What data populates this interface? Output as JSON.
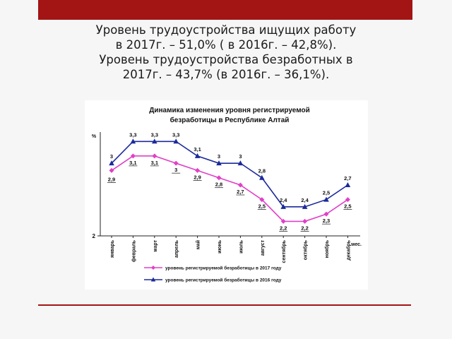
{
  "heading": {
    "line1": "Уровень трудоустройства ищущих работу",
    "line2": "в 2017г. – 51,0% ( в 2016г. – 42,8%).",
    "line3": "Уровень трудоустройства безработных в",
    "line4": "2017г. – 43,7% (в 2016г. – 36,1%)."
  },
  "colors": {
    "bar": "#a31515",
    "series_2017": "#e040c8",
    "series_2016": "#1b2a9a"
  },
  "chart_data": {
    "type": "line",
    "title_line1": "Динамика изменения уровня регистрируемой",
    "title_line2": "безработицы в Республике Алтай",
    "ylabel": "%",
    "ylim": [
      2,
      3.4
    ],
    "y_ticks": [
      {
        "value": 2,
        "label": "2"
      }
    ],
    "categories": [
      "январь",
      "февраль",
      "март",
      "апрель",
      "май",
      "июнь",
      "июль",
      "август",
      "сентябрь",
      "октябрь",
      "ноябрь",
      "декабрь"
    ],
    "category_suffix": "мес.",
    "legend_position": "bottom",
    "series": [
      {
        "name": "уровень регистрируемой безработицы в 2017 году",
        "marker": "diamond",
        "color": "#e040c8",
        "values": [
          2.9,
          3.1,
          3.1,
          3.0,
          2.9,
          2.8,
          2.7,
          2.5,
          2.2,
          2.2,
          2.3,
          2.5
        ],
        "labels": [
          "2,9",
          "3,1",
          "3,1",
          "3",
          "2,9",
          "2,8",
          "2,7",
          "2,5",
          "2,2",
          "2,2",
          "2,3",
          "2,5"
        ]
      },
      {
        "name": "уровень регистрируемой безработицы в 2016 году",
        "marker": "triangle",
        "color": "#1b2a9a",
        "values": [
          3.0,
          3.3,
          3.3,
          3.3,
          3.1,
          3.0,
          3.0,
          2.8,
          2.4,
          2.4,
          2.5,
          2.7
        ],
        "labels": [
          "3",
          "3,3",
          "3,3",
          "3,3",
          "3,1",
          "3",
          "3",
          "2,8",
          "2,4",
          "2,4",
          "2,5",
          "2,7"
        ]
      }
    ]
  }
}
